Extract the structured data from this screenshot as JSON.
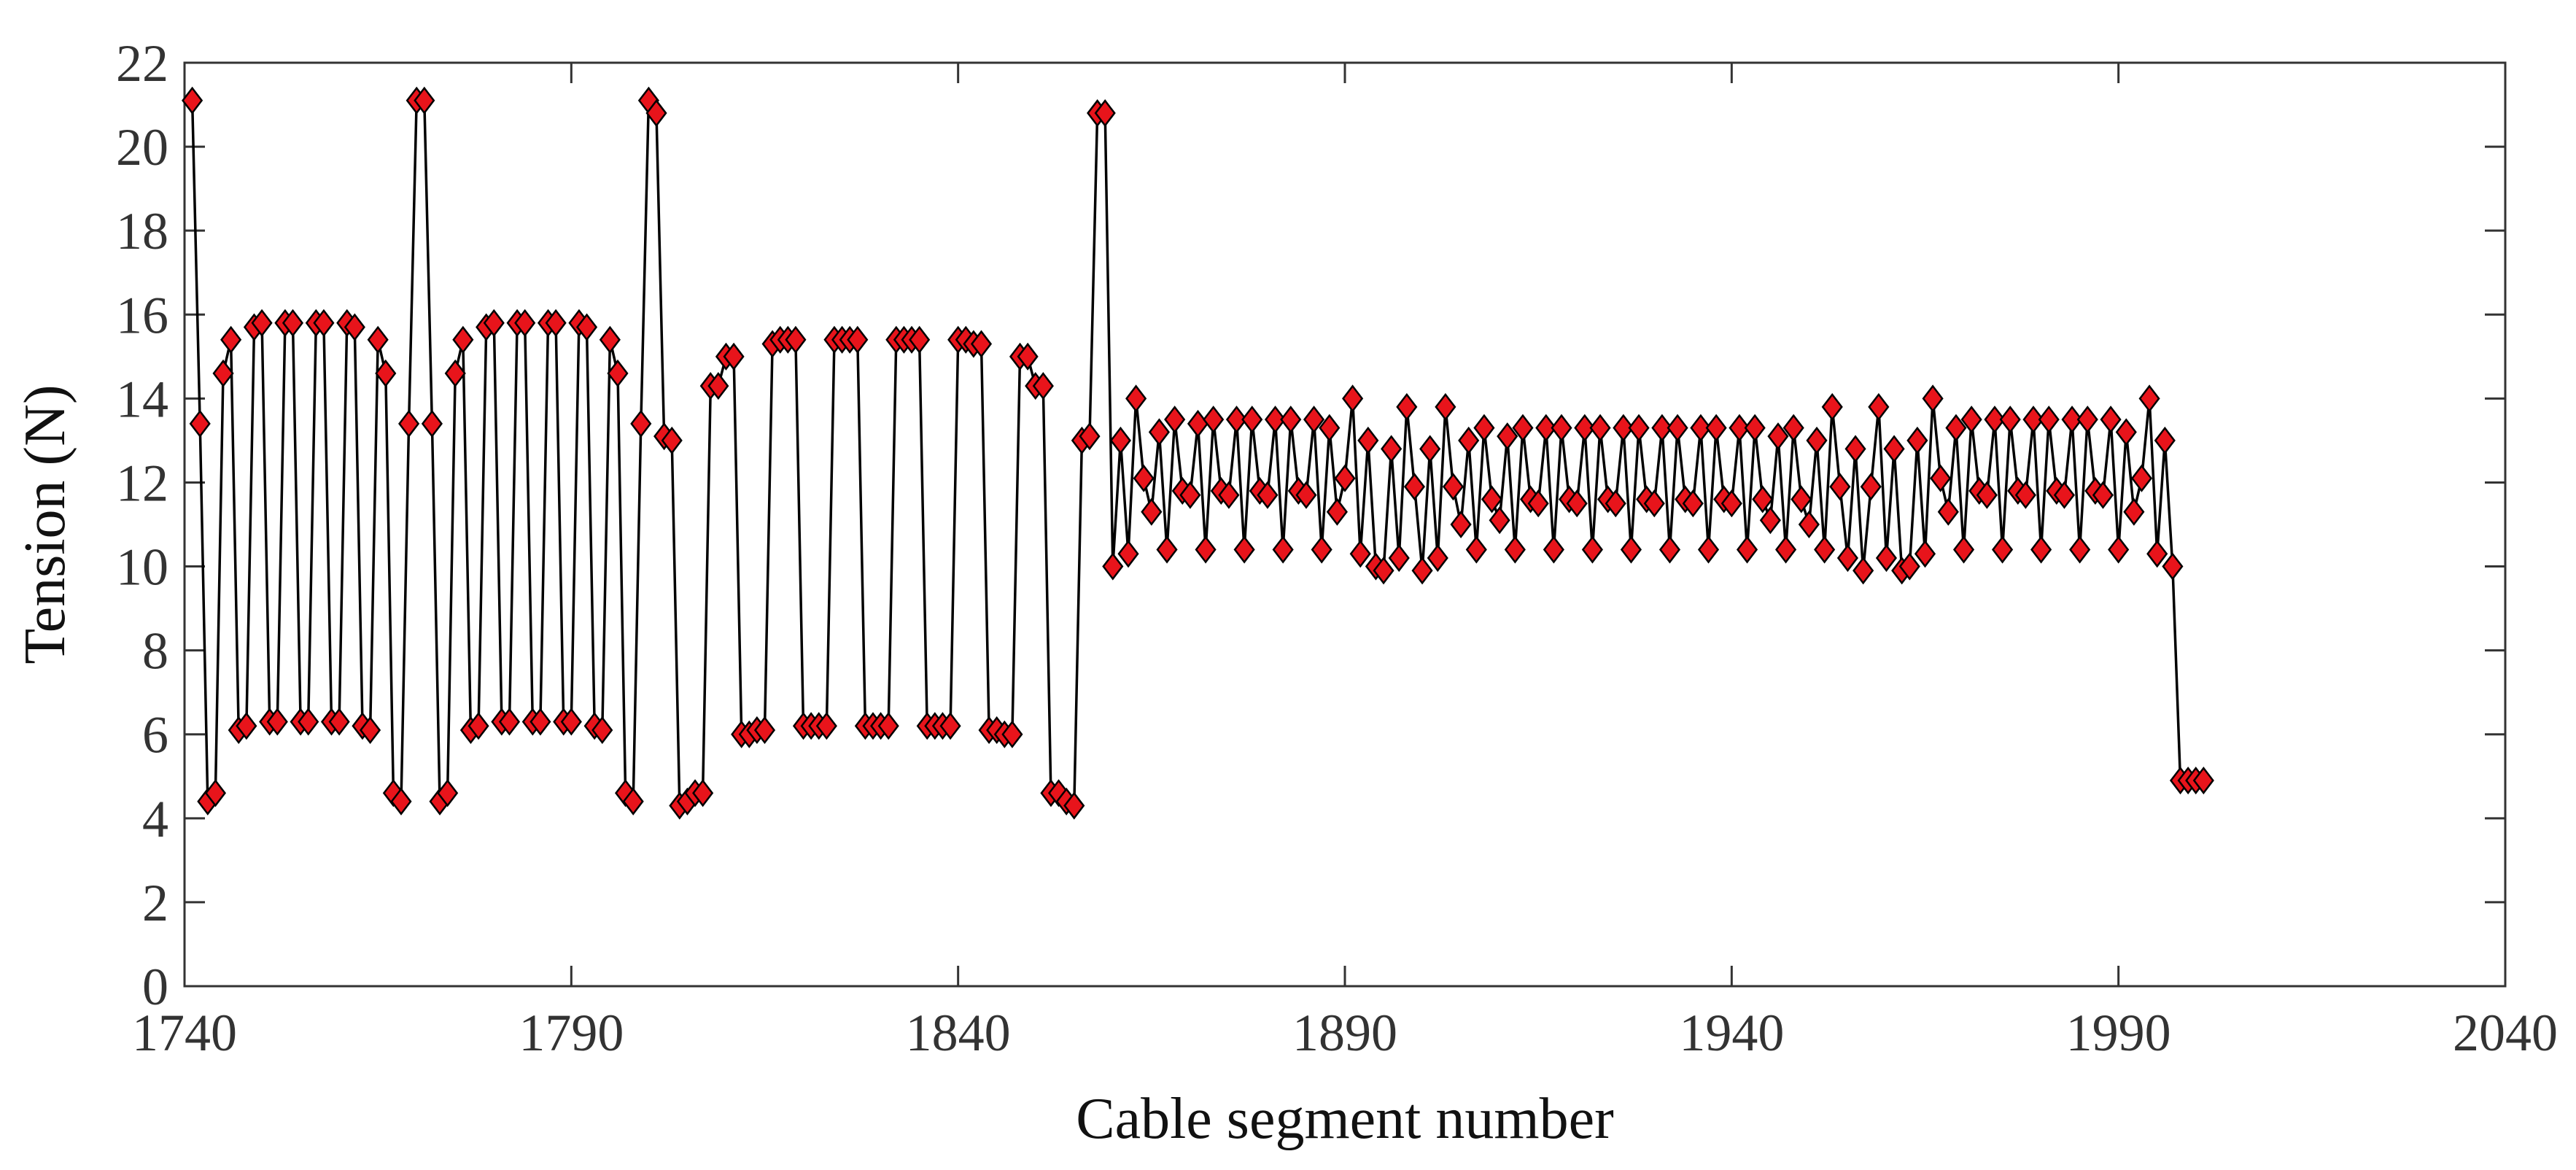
{
  "chart_data": {
    "type": "line",
    "title": "",
    "xlabel": "Cable segment number",
    "ylabel": "Tension (N)",
    "xlim": [
      1740,
      2040
    ],
    "ylim": [
      0,
      22
    ],
    "xticks": [
      1740,
      1790,
      1840,
      1890,
      1940,
      1990,
      2040
    ],
    "yticks": [
      0,
      2,
      4,
      6,
      8,
      10,
      12,
      14,
      16,
      18,
      20,
      22
    ],
    "grid": false,
    "legend": "none",
    "marker": "diamond",
    "colors": {
      "line": "#000000",
      "marker_fill": "#e8141b",
      "marker_edge": "#000000",
      "axes": "#333333"
    },
    "series": [
      {
        "x_start": 1741,
        "x_step": 1,
        "y": [
          21.1,
          13.4,
          4.4,
          4.6,
          14.6,
          15.4,
          6.1,
          6.2,
          15.7,
          15.8,
          6.3,
          6.3,
          15.8,
          15.8,
          6.3,
          6.3,
          15.8,
          15.8,
          6.3,
          6.3,
          15.8,
          15.7,
          6.2,
          6.1,
          15.4,
          14.6,
          4.6,
          4.4,
          13.4,
          21.1,
          21.1,
          13.4,
          4.4,
          4.6,
          14.6,
          15.4,
          6.1,
          6.2,
          15.7,
          15.8,
          6.3,
          6.3,
          15.8,
          15.8,
          6.3,
          6.3,
          15.8,
          15.8,
          6.3,
          6.3,
          15.8,
          15.7,
          6.2,
          6.1,
          15.4,
          14.6,
          4.6,
          4.4,
          13.4,
          21.1,
          20.8,
          13.1,
          13.0,
          4.3,
          4.4,
          4.6,
          4.6,
          14.3,
          14.3,
          15.0,
          15.0,
          6.0,
          6.0,
          6.1,
          6.1,
          15.3,
          15.4,
          15.4,
          15.4,
          6.2,
          6.2,
          6.2,
          6.2,
          15.4,
          15.4,
          15.4,
          15.4,
          6.2,
          6.2,
          6.2,
          6.2,
          15.4,
          15.4,
          15.4,
          15.4,
          6.2,
          6.2,
          6.2,
          6.2,
          15.4,
          15.4,
          15.3,
          15.3,
          6.1,
          6.1,
          6.0,
          6.0,
          15.0,
          15.0,
          14.3,
          14.3,
          4.6,
          4.6,
          4.4,
          4.3,
          13.0,
          13.1,
          20.8,
          20.8,
          10.0,
          13.0,
          10.3,
          14.0,
          12.1,
          11.3,
          13.2,
          10.4,
          13.5,
          11.8,
          11.7,
          13.4,
          10.4,
          13.5,
          11.8,
          11.7,
          13.5,
          10.4,
          13.5,
          11.8,
          11.7,
          13.5,
          10.4,
          13.5,
          11.8,
          11.7,
          13.5,
          10.4,
          13.3,
          11.3,
          12.1,
          14.0,
          10.3,
          13.0,
          10.0,
          9.9,
          12.8,
          10.2,
          13.8,
          11.9,
          9.9,
          12.8,
          10.2,
          13.8,
          11.9,
          11.0,
          13.0,
          10.4,
          13.3,
          11.6,
          11.1,
          13.1,
          10.4,
          13.3,
          11.6,
          11.5,
          13.3,
          10.4,
          13.3,
          11.6,
          11.5,
          13.3,
          10.4,
          13.3,
          11.6,
          11.5,
          13.3,
          10.4,
          13.3,
          11.6,
          11.5,
          13.3,
          10.4,
          13.3,
          11.6,
          11.5,
          13.3,
          10.4,
          13.3,
          11.6,
          11.5,
          13.3,
          10.4,
          13.3,
          11.6,
          11.1,
          13.1,
          10.4,
          13.3,
          11.6,
          11.0,
          13.0,
          10.4,
          13.8,
          11.9,
          10.2,
          12.8,
          9.9,
          11.9,
          13.8,
          10.2,
          12.8,
          9.9,
          10.0,
          13.0,
          10.3,
          14.0,
          12.1,
          11.3,
          13.3,
          10.4,
          13.5,
          11.8,
          11.7,
          13.5,
          10.4,
          13.5,
          11.8,
          11.7,
          13.5,
          10.4,
          13.5,
          11.8,
          11.7,
          13.5,
          10.4,
          13.5,
          11.8,
          11.7,
          13.5,
          10.4,
          13.2,
          11.3,
          12.1,
          14.0,
          10.3,
          13.0,
          10.0,
          4.9,
          4.9,
          4.9,
          4.9
        ]
      }
    ]
  }
}
